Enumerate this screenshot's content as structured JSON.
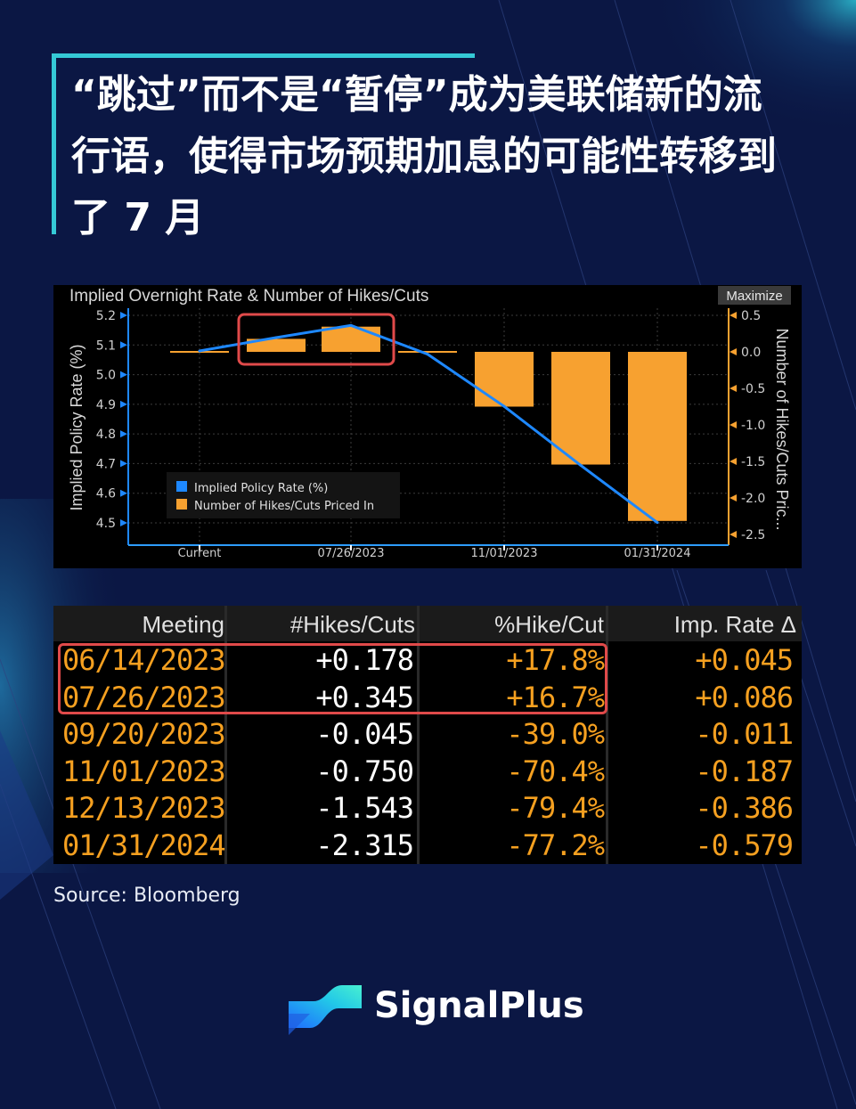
{
  "headline": "“跳过”而不是“暂停”成为美联储新的流行语，使得市场预期加息的可能性转移到了 7 月",
  "chart_data": {
    "type": "bar",
    "title": "Implied Overnight Rate & Number of Hikes/Cuts",
    "button_label": "Maximize",
    "ylabel_left": "Implied Policy Rate (%)",
    "ylabel_right": "Number of Hikes/Cuts Pric...",
    "ylim_left": [
      4.5,
      5.2
    ],
    "ylim_right": [
      -2.5,
      0.5
    ],
    "left_ticks": [
      "5.2",
      "5.1",
      "5.0",
      "4.9",
      "4.8",
      "4.7",
      "4.6",
      "4.5"
    ],
    "right_ticks": [
      "0.5",
      "0.0",
      "-0.5",
      "-1.0",
      "-1.5",
      "-2.0",
      "-2.5"
    ],
    "x_tick_labels": [
      "Current",
      "07/26/2023",
      "11/01/2023",
      "01/31/2024"
    ],
    "categories": [
      "Current",
      "06/14/2023",
      "07/26/2023",
      "09/20/2023",
      "11/01/2023",
      "12/13/2023",
      "01/31/2024"
    ],
    "series": [
      {
        "name": "Implied Policy Rate (%)",
        "kind": "line",
        "color": "#1e88ff",
        "values": [
          5.08,
          5.125,
          5.166,
          5.069,
          4.893,
          4.694,
          4.501
        ]
      },
      {
        "name": "Number of Hikes/Cuts Priced In",
        "kind": "bar",
        "color": "#f7a130",
        "values": [
          0,
          0.178,
          0.345,
          -0.045,
          -0.75,
          -1.543,
          -2.315
        ]
      }
    ],
    "legend_position": "bottom-left",
    "grid": true,
    "highlighted": [
      "06/14/2023",
      "07/26/2023"
    ]
  },
  "table": {
    "headers": [
      "Meeting",
      "#Hikes/Cuts",
      "%Hike/Cut",
      "Imp. Rate Δ"
    ],
    "rows": [
      [
        "06/14/2023",
        "+0.178",
        "+17.8%",
        "+0.045"
      ],
      [
        "07/26/2023",
        "+0.345",
        "+16.7%",
        "+0.086"
      ],
      [
        "09/20/2023",
        "-0.045",
        "-39.0%",
        "-0.011"
      ],
      [
        "11/01/2023",
        "-0.750",
        "-70.4%",
        "-0.187"
      ],
      [
        "12/13/2023",
        "-1.543",
        "-79.4%",
        "-0.386"
      ],
      [
        "01/31/2024",
        "-2.315",
        "-77.2%",
        "-0.579"
      ]
    ],
    "highlighted_rows": [
      0,
      1
    ]
  },
  "source": "Source: Bloomberg",
  "brand": {
    "name": "SignalPlus",
    "logo_icon": "signalplus-logo-icon"
  },
  "colors": {
    "background": "#0b1744",
    "accent": "#35c9d6",
    "highlight": "#e04a4a"
  }
}
